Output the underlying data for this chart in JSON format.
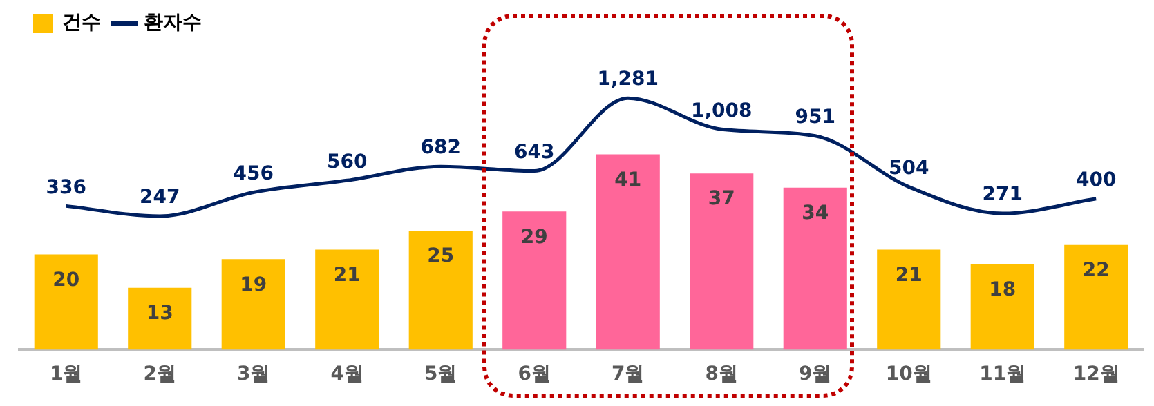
{
  "chart_data": {
    "type": "bar",
    "categories": [
      "1월",
      "2월",
      "3월",
      "4월",
      "5월",
      "6월",
      "7월",
      "8월",
      "9월",
      "10월",
      "11월",
      "12월"
    ],
    "series": [
      {
        "name": "건수",
        "colors": [
          "#ffc000",
          "#ffc000",
          "#ffc000",
          "#ffc000",
          "#ffc000",
          "#ff6699",
          "#ff6699",
          "#ff6699",
          "#ff6699",
          "#ffc000",
          "#ffc000",
          "#ffc000"
        ],
        "color": "#ffc000",
        "values": [
          20,
          13,
          19,
          21,
          25,
          29,
          41,
          37,
          34,
          21,
          18,
          22
        ]
      },
      {
        "name": "환자수",
        "type": "line",
        "axis": "y2",
        "color": "#002060",
        "values": [
          336,
          247,
          456,
          560,
          682,
          643,
          1281,
          1008,
          951,
          504,
          271,
          400
        ],
        "value_labels": [
          "336",
          "247",
          "456",
          "560",
          "682",
          "643",
          "1,281",
          "1,008",
          "951",
          "504",
          "271",
          "400"
        ]
      }
    ],
    "data_labels": true,
    "legend": "top left",
    "grid": false,
    "marker": "none",
    "line_style": "solid",
    "tick_labels": "x"
  }
}
